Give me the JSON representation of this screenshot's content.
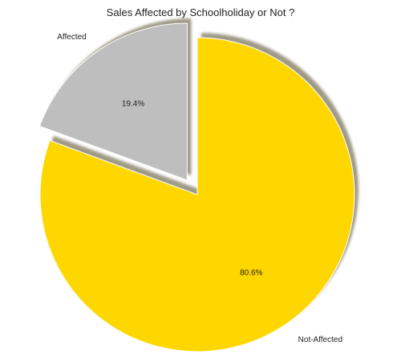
{
  "chart_data": {
    "type": "pie",
    "title": "Sales Affected by Schoolholiday or Not ?",
    "slices": [
      {
        "name": "Affected",
        "value": 19.4,
        "pct_label": "19.4%",
        "color": "#bebebe",
        "exploded": true
      },
      {
        "name": "Not-Affected",
        "value": 80.6,
        "pct_label": "80.6%",
        "color": "#ffd700",
        "exploded": false
      }
    ],
    "shadow": true,
    "start_angle_deg": 90,
    "direction": "counterclockwise"
  }
}
